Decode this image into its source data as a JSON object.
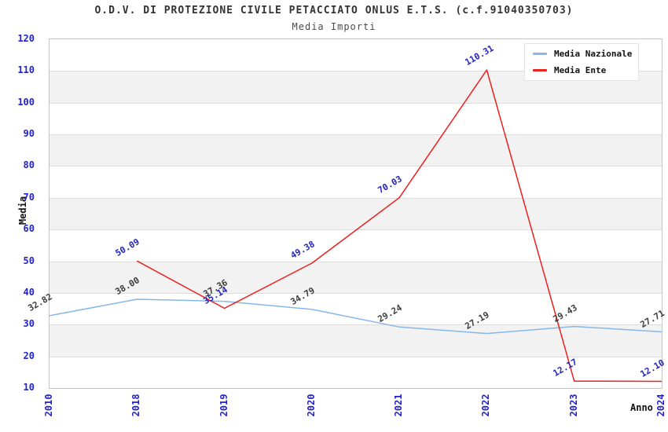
{
  "chart_data": {
    "type": "line",
    "title": "O.D.V. DI PROTEZIONE CIVILE PETACCIATO ONLUS E.T.S. (c.f.91040350703)",
    "subtitle": "Media Importi",
    "xlabel": "Anno",
    "ylabel": "Media",
    "categories": [
      "2010",
      "2018",
      "2019",
      "2020",
      "2021",
      "2022",
      "2023",
      "2024"
    ],
    "series": [
      {
        "name": "Media Nazionale",
        "color": "#85b7e8",
        "label_color": "#3c3c3c",
        "values": [
          32.82,
          38.0,
          37.36,
          34.79,
          29.24,
          27.19,
          29.43,
          27.71
        ]
      },
      {
        "name": "Media Ente",
        "color": "#ee1f1f",
        "label_color": "#2525bb",
        "values": [
          null,
          50.09,
          35.14,
          49.38,
          70.03,
          110.31,
          12.17,
          12.1
        ]
      }
    ],
    "ylim": [
      10,
      120
    ],
    "ytick_step": 10,
    "yticks": [
      120,
      110,
      100,
      90,
      80,
      70,
      60,
      50,
      40,
      30,
      20,
      10
    ],
    "grid": "horizontal-bands",
    "band_colors": [
      "#ffffff",
      "#f2f2f2"
    ],
    "tick_color": "#2222cc",
    "legend_position": "top-right"
  }
}
